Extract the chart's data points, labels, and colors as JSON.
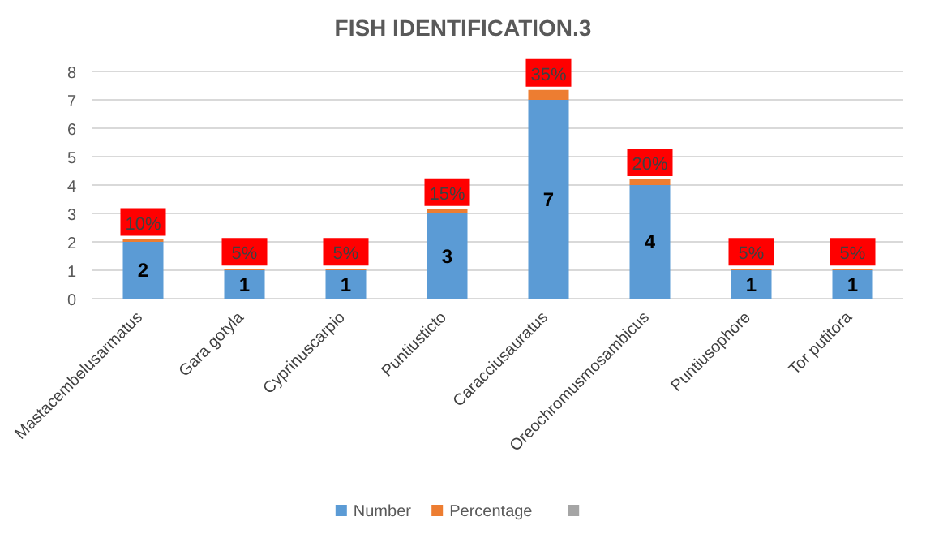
{
  "chart_data": {
    "type": "bar",
    "title": "FISH IDENTIFICATION.3",
    "stacked": true,
    "categories": [
      "Mastacembelusarmatus",
      "Gara gotyla",
      "Cyprinuscarpio",
      "Puntiusticto",
      "Caracciusauratus",
      "Oreochromusmosambicus",
      "Puntiusophore",
      "Tor putitora"
    ],
    "series": [
      {
        "name": "Number",
        "color": "#5b9bd5",
        "values": [
          2,
          1,
          1,
          3,
          7,
          4,
          1,
          1
        ],
        "value_labels": [
          "2",
          "1",
          "1",
          "3",
          "7",
          "4",
          "1",
          "1"
        ]
      },
      {
        "name": "Percentage",
        "color": "#ed7d31",
        "values": [
          0.1,
          0.05,
          0.05,
          0.15,
          0.35,
          0.2,
          0.05,
          0.05
        ],
        "value_labels": [
          "10%",
          "5%",
          "5%",
          "15%",
          "35%",
          "20%",
          "5%",
          "5%"
        ]
      }
    ],
    "ylim": [
      0,
      8
    ],
    "yticks": [
      0,
      1,
      2,
      3,
      4,
      5,
      6,
      7,
      8
    ],
    "grid": "y",
    "legend": "bottom"
  }
}
